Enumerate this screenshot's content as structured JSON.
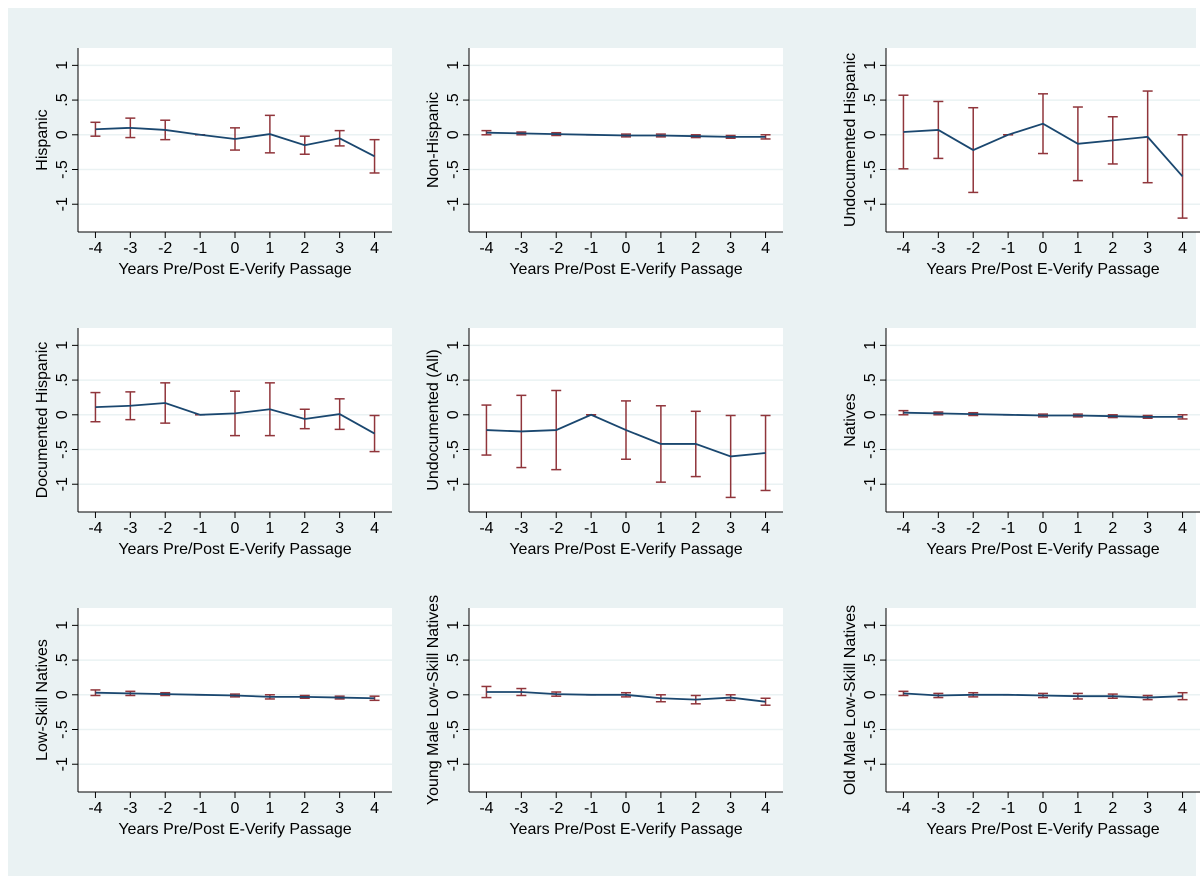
{
  "chart_data": [
    {
      "type": "line",
      "y_label": "Hispanic",
      "x_label": "Years Pre/Post E-Verify Passage",
      "x": [
        -4,
        -3,
        -2,
        -1,
        0,
        1,
        2,
        3,
        4
      ],
      "values": [
        0.08,
        0.1,
        0.07,
        0,
        -0.06,
        0.01,
        -0.15,
        -0.05,
        -0.31
      ],
      "errors": [
        0.1,
        0.14,
        0.14,
        0,
        0.16,
        0.27,
        0.13,
        0.11,
        0.24
      ],
      "color": "#1a476f",
      "error_color": "#90353b",
      "xlim": [
        -4.5,
        4.5
      ],
      "ylim": [
        -1.4,
        1.25
      ],
      "xticks": [
        -4,
        -3,
        -2,
        -1,
        0,
        1,
        2,
        3,
        4
      ],
      "yticks": [
        1,
        {
          "value": 0.5,
          "label": ".5"
        },
        0,
        {
          "value": -0.5,
          "label": "-.5"
        },
        -1
      ],
      "grid": true
    },
    {
      "type": "line",
      "y_label": "Non-Hispanic",
      "x_label": "Years Pre/Post E-Verify Passage",
      "x": [
        -4,
        -3,
        -2,
        -1,
        0,
        1,
        2,
        3,
        4
      ],
      "values": [
        0.03,
        0.02,
        0.01,
        0,
        -0.01,
        -0.01,
        -0.02,
        -0.03,
        -0.03
      ],
      "errors": [
        0.03,
        0.02,
        0.02,
        0,
        0.02,
        0.02,
        0.02,
        0.02,
        0.03
      ],
      "color": "#1a476f",
      "error_color": "#90353b",
      "xlim": [
        -4.5,
        4.5
      ],
      "ylim": [
        -1.4,
        1.25
      ],
      "xticks": [
        -4,
        -3,
        -2,
        -1,
        0,
        1,
        2,
        3,
        4
      ],
      "yticks": [
        1,
        {
          "value": 0.5,
          "label": ".5"
        },
        0,
        {
          "value": -0.5,
          "label": "-.5"
        },
        -1
      ],
      "grid": true
    },
    {
      "type": "line",
      "y_label": "Undocumented Hispanic",
      "x_label": "Years Pre/Post E-Verify Passage",
      "x": [
        -4,
        -3,
        -2,
        -1,
        0,
        1,
        2,
        3,
        4
      ],
      "values": [
        0.04,
        0.07,
        -0.22,
        0,
        0.16,
        -0.13,
        -0.08,
        -0.03,
        -0.6
      ],
      "errors": [
        0.53,
        0.41,
        0.61,
        0,
        0.43,
        0.53,
        0.34,
        0.66,
        0.6
      ],
      "color": "#1a476f",
      "error_color": "#90353b",
      "xlim": [
        -4.5,
        4.5
      ],
      "ylim": [
        -1.4,
        1.25
      ],
      "xticks": [
        -4,
        -3,
        -2,
        -1,
        0,
        1,
        2,
        3,
        4
      ],
      "yticks": [
        1,
        {
          "value": 0.5,
          "label": ".5"
        },
        0,
        {
          "value": -0.5,
          "label": "-.5"
        },
        -1
      ],
      "grid": true
    },
    {
      "type": "line",
      "y_label": "Documented Hispanic",
      "x_label": "Years Pre/Post E-Verify Passage",
      "x": [
        -4,
        -3,
        -2,
        -1,
        0,
        1,
        2,
        3,
        4
      ],
      "values": [
        0.11,
        0.13,
        0.17,
        0,
        0.02,
        0.08,
        -0.06,
        0.01,
        -0.27
      ],
      "errors": [
        0.21,
        0.2,
        0.29,
        0,
        0.32,
        0.38,
        0.14,
        0.22,
        0.26
      ],
      "color": "#1a476f",
      "error_color": "#90353b",
      "xlim": [
        -4.5,
        4.5
      ],
      "ylim": [
        -1.4,
        1.25
      ],
      "xticks": [
        -4,
        -3,
        -2,
        -1,
        0,
        1,
        2,
        3,
        4
      ],
      "yticks": [
        1,
        {
          "value": 0.5,
          "label": ".5"
        },
        0,
        {
          "value": -0.5,
          "label": "-.5"
        },
        -1
      ],
      "grid": true
    },
    {
      "type": "line",
      "y_label": "Undocumented (All)",
      "x_label": "Years Pre/Post E-Verify Passage",
      "x": [
        -4,
        -3,
        -2,
        -1,
        0,
        1,
        2,
        3,
        4
      ],
      "values": [
        -0.22,
        -0.24,
        -0.22,
        0,
        -0.22,
        -0.42,
        -0.42,
        -0.6,
        -0.55
      ],
      "errors": [
        0.36,
        0.52,
        0.57,
        0,
        0.42,
        0.55,
        0.47,
        0.59,
        0.54
      ],
      "color": "#1a476f",
      "error_color": "#90353b",
      "xlim": [
        -4.5,
        4.5
      ],
      "ylim": [
        -1.4,
        1.25
      ],
      "xticks": [
        -4,
        -3,
        -2,
        -1,
        0,
        1,
        2,
        3,
        4
      ],
      "yticks": [
        1,
        {
          "value": 0.5,
          "label": ".5"
        },
        0,
        {
          "value": -0.5,
          "label": "-.5"
        },
        -1
      ],
      "grid": true
    },
    {
      "type": "line",
      "y_label": "Natives",
      "x_label": "Years Pre/Post E-Verify Passage",
      "x": [
        -4,
        -3,
        -2,
        -1,
        0,
        1,
        2,
        3,
        4
      ],
      "values": [
        0.03,
        0.02,
        0.01,
        0,
        -0.01,
        -0.01,
        -0.02,
        -0.03,
        -0.03
      ],
      "errors": [
        0.03,
        0.02,
        0.02,
        0,
        0.02,
        0.02,
        0.02,
        0.02,
        0.03
      ],
      "color": "#1a476f",
      "error_color": "#90353b",
      "xlim": [
        -4.5,
        4.5
      ],
      "ylim": [
        -1.4,
        1.25
      ],
      "xticks": [
        -4,
        -3,
        -2,
        -1,
        0,
        1,
        2,
        3,
        4
      ],
      "yticks": [
        1,
        {
          "value": 0.5,
          "label": ".5"
        },
        0,
        {
          "value": -0.5,
          "label": "-.5"
        },
        -1
      ],
      "grid": true
    },
    {
      "type": "line",
      "y_label": "Low-Skill Natives",
      "x_label": "Years Pre/Post E-Verify Passage",
      "x": [
        -4,
        -3,
        -2,
        -1,
        0,
        1,
        2,
        3,
        4
      ],
      "values": [
        0.03,
        0.02,
        0.01,
        0,
        -0.01,
        -0.03,
        -0.03,
        -0.04,
        -0.05
      ],
      "errors": [
        0.04,
        0.03,
        0.02,
        0,
        0.02,
        0.03,
        0.02,
        0.02,
        0.03
      ],
      "color": "#1a476f",
      "error_color": "#90353b",
      "xlim": [
        -4.5,
        4.5
      ],
      "ylim": [
        -1.4,
        1.25
      ],
      "xticks": [
        -4,
        -3,
        -2,
        -1,
        0,
        1,
        2,
        3,
        4
      ],
      "yticks": [
        1,
        {
          "value": 0.5,
          "label": ".5"
        },
        0,
        {
          "value": -0.5,
          "label": "-.5"
        },
        -1
      ],
      "grid": true
    },
    {
      "type": "line",
      "y_label": "Young Male  Low-Skill Natives",
      "x_label": "Years Pre/Post E-Verify Passage",
      "x": [
        -4,
        -3,
        -2,
        -1,
        0,
        1,
        2,
        3,
        4
      ],
      "values": [
        0.04,
        0.04,
        0.01,
        0,
        0,
        -0.05,
        -0.07,
        -0.04,
        -0.1
      ],
      "errors": [
        0.08,
        0.05,
        0.03,
        0,
        0.03,
        0.05,
        0.06,
        0.04,
        0.05
      ],
      "color": "#1a476f",
      "error_color": "#90353b",
      "xlim": [
        -4.5,
        4.5
      ],
      "ylim": [
        -1.4,
        1.25
      ],
      "xticks": [
        -4,
        -3,
        -2,
        -1,
        0,
        1,
        2,
        3,
        4
      ],
      "yticks": [
        1,
        {
          "value": 0.5,
          "label": ".5"
        },
        0,
        {
          "value": -0.5,
          "label": "-.5"
        },
        -1
      ],
      "grid": true
    },
    {
      "type": "line",
      "y_label": "Old Male Low-Skill Natives",
      "x_label": "Years Pre/Post E-Verify Passage",
      "x": [
        -4,
        -3,
        -2,
        -1,
        0,
        1,
        2,
        3,
        4
      ],
      "values": [
        0.02,
        -0.01,
        0,
        0,
        -0.01,
        -0.02,
        -0.02,
        -0.04,
        -0.02
      ],
      "errors": [
        0.03,
        0.03,
        0.03,
        0,
        0.03,
        0.04,
        0.03,
        0.03,
        0.05
      ],
      "color": "#1a476f",
      "error_color": "#90353b",
      "xlim": [
        -4.5,
        4.5
      ],
      "ylim": [
        -1.4,
        1.25
      ],
      "xticks": [
        -4,
        -3,
        -2,
        -1,
        0,
        1,
        2,
        3,
        4
      ],
      "yticks": [
        1,
        {
          "value": 0.5,
          "label": ".5"
        },
        0,
        {
          "value": -0.5,
          "label": "-.5"
        },
        -1
      ],
      "grid": true
    }
  ]
}
